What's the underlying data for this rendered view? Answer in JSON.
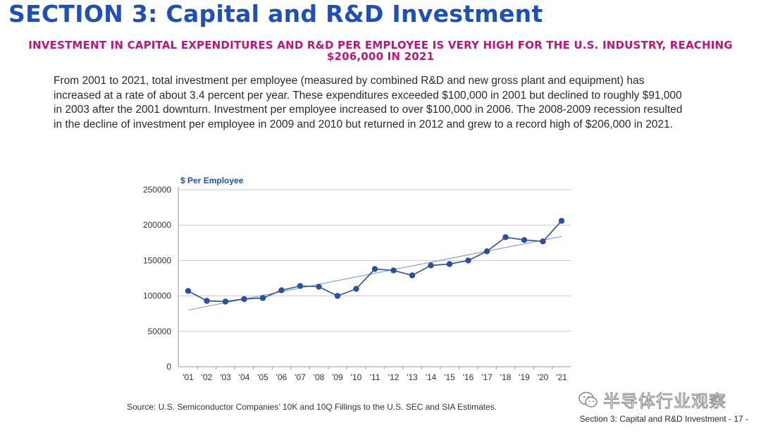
{
  "page": {
    "section_title": "SECTION 3: Capital and R&D Investment",
    "subtitle": "INVESTMENT IN CAPITAL EXPENDITURES AND R&D PER EMPLOYEE IS VERY HIGH FOR THE U.S. INDUSTRY, REACHING $206,000 IN 2021",
    "body_text": "From 2001 to 2021, total investment per employee (measured by combined R&D and new gross plant and equipment) has increased at a rate of about 3.4 percent per year. These expenditures exceeded $100,000 in 2001 but declined to roughly $91,000 in 2003 after the 2001 downturn. Investment per employee increased to over $100,000 in 2006. The 2008-2009 recession resulted in the decline of investment per employee in 2009 and 2010 but returned in 2012 and grew to a record high of $206,000 in 2021.",
    "source": "Source: U.S. Semiconductor Companies’ 10K and 10Q Fillings to the U.S. SEC and SIA Estimates.",
    "watermark_text": "半导体行业观察",
    "footer": "Section 3: Capital and R&D Investment - 17 -"
  },
  "colors": {
    "title": "#1f4fb9",
    "subtitle": "#c0147d",
    "series": "#2a4f9e",
    "trend": "#6f8fd0",
    "axis": "#9a9a9a",
    "grid": "#c9c9c9"
  },
  "chart_data": {
    "type": "line",
    "ylabel": "$ Per Employee",
    "xlabel": "",
    "categories": [
      "'01",
      "'02",
      "'03",
      "'04",
      "'05",
      "'06",
      "'07",
      "'08",
      "'09",
      "'10",
      "'11",
      "'12",
      "'13",
      "'14",
      "'15",
      "'16",
      "'17",
      "'18",
      "'19",
      "'20",
      "'21"
    ],
    "series": [
      {
        "values": [
          107000,
          93000,
          92000,
          95500,
          97000,
          108000,
          114000,
          113000,
          100000,
          110000,
          138000,
          136000,
          129000,
          143000,
          145000,
          150000,
          163000,
          183000,
          179000,
          177000,
          206000
        ]
      }
    ],
    "trendline": {
      "start": 80000,
      "end": 184000
    },
    "ylim": [
      0,
      250000
    ],
    "yticks": [
      0,
      50000,
      100000,
      150000,
      200000,
      250000
    ],
    "grid": "horizontal",
    "legend": "none"
  }
}
